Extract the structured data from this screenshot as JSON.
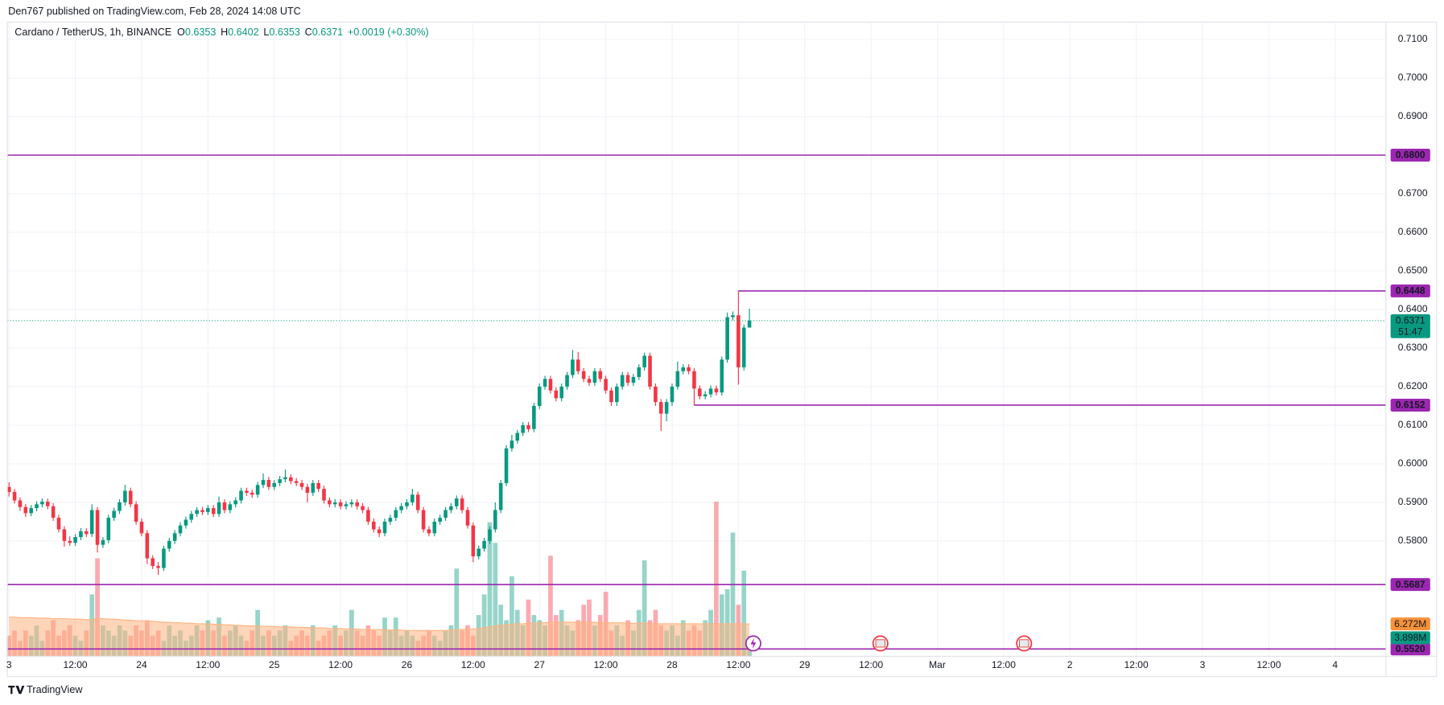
{
  "header": {
    "published": "Den767 published on TradingView.com, Feb 28, 2024 14:08 UTC"
  },
  "footer": {
    "brand": "TradingView"
  },
  "chart_data": {
    "type": "candlestick",
    "legend": {
      "symbol": "Cardano / TetherUS, 1h, BINANCE",
      "fields": [
        {
          "key": "O",
          "value": "0.6353"
        },
        {
          "key": "H",
          "value": "0.6402"
        },
        {
          "key": "L",
          "value": "0.6353"
        },
        {
          "key": "C",
          "value": "0.6371"
        }
      ],
      "change": "+0.0019 (+0.30%)"
    },
    "candles": [
      [
        0.594,
        0.5952,
        0.5915,
        0.5927
      ],
      [
        0.5927,
        0.5935,
        0.5897,
        0.5905
      ],
      [
        0.5905,
        0.5913,
        0.5878,
        0.5888
      ],
      [
        0.5888,
        0.5896,
        0.5862,
        0.5872
      ],
      [
        0.5872,
        0.5893,
        0.5864,
        0.5885
      ],
      [
        0.5885,
        0.5903,
        0.5877,
        0.5895
      ],
      [
        0.5895,
        0.591,
        0.5887,
        0.5902
      ],
      [
        0.5902,
        0.591,
        0.5882,
        0.589
      ],
      [
        0.589,
        0.5898,
        0.5852,
        0.586
      ],
      [
        0.586,
        0.5868,
        0.5822,
        0.583
      ],
      [
        0.583,
        0.5838,
        0.5785,
        0.58
      ],
      [
        0.58,
        0.5812,
        0.5787,
        0.5795
      ],
      [
        0.5795,
        0.5818,
        0.5787,
        0.581
      ],
      [
        0.581,
        0.5833,
        0.5802,
        0.5825
      ],
      [
        0.5825,
        0.5833,
        0.581,
        0.5818
      ],
      [
        0.5818,
        0.5895,
        0.581,
        0.588
      ],
      [
        0.588,
        0.5888,
        0.577,
        0.579
      ],
      [
        0.579,
        0.581,
        0.5782,
        0.5802
      ],
      [
        0.5802,
        0.5868,
        0.5794,
        0.586
      ],
      [
        0.586,
        0.5886,
        0.5852,
        0.5878
      ],
      [
        0.5878,
        0.5908,
        0.587,
        0.59
      ],
      [
        0.59,
        0.5945,
        0.5892,
        0.593
      ],
      [
        0.593,
        0.5938,
        0.5887,
        0.5895
      ],
      [
        0.5895,
        0.5903,
        0.5842,
        0.585
      ],
      [
        0.585,
        0.5858,
        0.5812,
        0.582
      ],
      [
        0.582,
        0.5828,
        0.574,
        0.5755
      ],
      [
        0.5755,
        0.5763,
        0.5727,
        0.5735
      ],
      [
        0.5735,
        0.5745,
        0.5712,
        0.573
      ],
      [
        0.573,
        0.5788,
        0.5722,
        0.578
      ],
      [
        0.578,
        0.5808,
        0.5772,
        0.58
      ],
      [
        0.58,
        0.5828,
        0.5792,
        0.582
      ],
      [
        0.582,
        0.5848,
        0.5812,
        0.584
      ],
      [
        0.584,
        0.5863,
        0.5832,
        0.5855
      ],
      [
        0.5855,
        0.5878,
        0.5847,
        0.587
      ],
      [
        0.587,
        0.5888,
        0.5862,
        0.588
      ],
      [
        0.588,
        0.5888,
        0.5867,
        0.5875
      ],
      [
        0.5875,
        0.5893,
        0.5867,
        0.5885
      ],
      [
        0.5885,
        0.5893,
        0.5862,
        0.587
      ],
      [
        0.587,
        0.5915,
        0.5862,
        0.59
      ],
      [
        0.59,
        0.5908,
        0.5872,
        0.588
      ],
      [
        0.588,
        0.5903,
        0.5872,
        0.5895
      ],
      [
        0.5895,
        0.5913,
        0.5887,
        0.5905
      ],
      [
        0.5905,
        0.5938,
        0.5897,
        0.593
      ],
      [
        0.593,
        0.5938,
        0.5917,
        0.5925
      ],
      [
        0.5925,
        0.5933,
        0.5912,
        0.592
      ],
      [
        0.592,
        0.5953,
        0.5912,
        0.5945
      ],
      [
        0.5945,
        0.5975,
        0.5937,
        0.5958
      ],
      [
        0.5958,
        0.5966,
        0.5932,
        0.594
      ],
      [
        0.594,
        0.5958,
        0.5932,
        0.595
      ],
      [
        0.595,
        0.5968,
        0.5942,
        0.596
      ],
      [
        0.596,
        0.5985,
        0.5952,
        0.5965
      ],
      [
        0.5965,
        0.5973,
        0.5947,
        0.5955
      ],
      [
        0.5955,
        0.5963,
        0.5942,
        0.595
      ],
      [
        0.595,
        0.5958,
        0.5932,
        0.594
      ],
      [
        0.594,
        0.5948,
        0.59,
        0.5925
      ],
      [
        0.5925,
        0.5958,
        0.5917,
        0.595
      ],
      [
        0.595,
        0.5958,
        0.5927,
        0.5935
      ],
      [
        0.5935,
        0.5943,
        0.5897,
        0.5905
      ],
      [
        0.5905,
        0.5913,
        0.5887,
        0.5895
      ],
      [
        0.5895,
        0.5908,
        0.5887,
        0.59
      ],
      [
        0.59,
        0.5908,
        0.5882,
        0.589
      ],
      [
        0.589,
        0.5903,
        0.5882,
        0.5895
      ],
      [
        0.5895,
        0.5908,
        0.5887,
        0.59
      ],
      [
        0.59,
        0.5908,
        0.5882,
        0.589
      ],
      [
        0.589,
        0.5898,
        0.5872,
        0.588
      ],
      [
        0.588,
        0.5888,
        0.5842,
        0.585
      ],
      [
        0.585,
        0.5858,
        0.5822,
        0.583
      ],
      [
        0.583,
        0.5838,
        0.581,
        0.582
      ],
      [
        0.582,
        0.5858,
        0.5812,
        0.585
      ],
      [
        0.585,
        0.5868,
        0.5842,
        0.586
      ],
      [
        0.586,
        0.5888,
        0.5852,
        0.588
      ],
      [
        0.588,
        0.5898,
        0.5872,
        0.589
      ],
      [
        0.589,
        0.5908,
        0.5882,
        0.59
      ],
      [
        0.59,
        0.5935,
        0.5892,
        0.592
      ],
      [
        0.592,
        0.5928,
        0.5872,
        0.588
      ],
      [
        0.588,
        0.5888,
        0.5822,
        0.583
      ],
      [
        0.583,
        0.5838,
        0.5812,
        0.582
      ],
      [
        0.582,
        0.5858,
        0.5812,
        0.585
      ],
      [
        0.585,
        0.5868,
        0.5842,
        0.586
      ],
      [
        0.586,
        0.5888,
        0.5852,
        0.588
      ],
      [
        0.588,
        0.5898,
        0.5872,
        0.589
      ],
      [
        0.589,
        0.5918,
        0.5882,
        0.591
      ],
      [
        0.591,
        0.5918,
        0.5872,
        0.588
      ],
      [
        0.588,
        0.5888,
        0.5832,
        0.584
      ],
      [
        0.584,
        0.5848,
        0.5745,
        0.576
      ],
      [
        0.576,
        0.5788,
        0.5752,
        0.578
      ],
      [
        0.578,
        0.5808,
        0.5772,
        0.58
      ],
      [
        0.58,
        0.5838,
        0.5792,
        0.583
      ],
      [
        0.583,
        0.59,
        0.5822,
        0.588
      ],
      [
        0.588,
        0.5958,
        0.5872,
        0.595
      ],
      [
        0.595,
        0.6048,
        0.5942,
        0.604
      ],
      [
        0.604,
        0.6075,
        0.6032,
        0.606
      ],
      [
        0.606,
        0.6088,
        0.6052,
        0.608
      ],
      [
        0.608,
        0.6108,
        0.6072,
        0.61
      ],
      [
        0.61,
        0.6108,
        0.6082,
        0.609
      ],
      [
        0.609,
        0.6158,
        0.6082,
        0.615
      ],
      [
        0.615,
        0.6208,
        0.6142,
        0.62
      ],
      [
        0.62,
        0.6228,
        0.6192,
        0.622
      ],
      [
        0.622,
        0.6228,
        0.6182,
        0.619
      ],
      [
        0.619,
        0.6198,
        0.6162,
        0.617
      ],
      [
        0.617,
        0.6208,
        0.6162,
        0.62
      ],
      [
        0.62,
        0.6238,
        0.6192,
        0.623
      ],
      [
        0.623,
        0.6295,
        0.6222,
        0.627
      ],
      [
        0.627,
        0.629,
        0.6232,
        0.624
      ],
      [
        0.624,
        0.6248,
        0.6212,
        0.622
      ],
      [
        0.622,
        0.6228,
        0.6202,
        0.621
      ],
      [
        0.621,
        0.6248,
        0.6202,
        0.624
      ],
      [
        0.624,
        0.6248,
        0.6212,
        0.622
      ],
      [
        0.622,
        0.6228,
        0.6182,
        0.619
      ],
      [
        0.619,
        0.6198,
        0.615,
        0.616
      ],
      [
        0.616,
        0.6208,
        0.615,
        0.62
      ],
      [
        0.62,
        0.6238,
        0.6192,
        0.623
      ],
      [
        0.623,
        0.6238,
        0.6202,
        0.621
      ],
      [
        0.621,
        0.6233,
        0.6202,
        0.6225
      ],
      [
        0.6225,
        0.6258,
        0.6217,
        0.625
      ],
      [
        0.625,
        0.6288,
        0.6242,
        0.628
      ],
      [
        0.628,
        0.6288,
        0.6192,
        0.62
      ],
      [
        0.62,
        0.6208,
        0.615,
        0.616
      ],
      [
        0.616,
        0.6168,
        0.6085,
        0.613
      ],
      [
        0.613,
        0.6168,
        0.611,
        0.616
      ],
      [
        0.616,
        0.6208,
        0.615,
        0.62
      ],
      [
        0.62,
        0.6265,
        0.6192,
        0.624
      ],
      [
        0.624,
        0.6258,
        0.6232,
        0.625
      ],
      [
        0.625,
        0.6258,
        0.6232,
        0.624
      ],
      [
        0.624,
        0.6248,
        0.6152,
        0.6195
      ],
      [
        0.6195,
        0.6203,
        0.6167,
        0.6175
      ],
      [
        0.6175,
        0.6188,
        0.6167,
        0.618
      ],
      [
        0.618,
        0.6203,
        0.6172,
        0.6195
      ],
      [
        0.6195,
        0.6203,
        0.6177,
        0.6185
      ],
      [
        0.6185,
        0.6278,
        0.6177,
        0.627
      ],
      [
        0.627,
        0.6392,
        0.6262,
        0.638
      ],
      [
        0.638,
        0.6395,
        0.6372,
        0.6385
      ],
      [
        0.6385,
        0.6448,
        0.6205,
        0.625
      ],
      [
        0.625,
        0.6361,
        0.6242,
        0.6353
      ],
      [
        0.6353,
        0.6402,
        0.6353,
        0.6371
      ]
    ],
    "volume": [
      4,
      5,
      3,
      5,
      4,
      6,
      3,
      5,
      7,
      4,
      5,
      6,
      4,
      3,
      5,
      12,
      19,
      6,
      5,
      4,
      6,
      5,
      4,
      6,
      5,
      7,
      4,
      5,
      3,
      6,
      4,
      5,
      3,
      4,
      6,
      5,
      7,
      5,
      7.5,
      4,
      5,
      6,
      4,
      3,
      5,
      9,
      4,
      5,
      4,
      5,
      6,
      3,
      4,
      5,
      4,
      6,
      3,
      4,
      5,
      6,
      4,
      5,
      9,
      5,
      4,
      6,
      5,
      4,
      7.5,
      5,
      7.5,
      4,
      5,
      4,
      3,
      4,
      5,
      4,
      3,
      5,
      6,
      17,
      5,
      6,
      4,
      8,
      12,
      26,
      22,
      10,
      7,
      15.5,
      9,
      6,
      11,
      8,
      7,
      6,
      19.5,
      8,
      9,
      6,
      5,
      7,
      10,
      11,
      6,
      8,
      12.5,
      5,
      6,
      4,
      7,
      5,
      9,
      18.6,
      7,
      9,
      6,
      5,
      6,
      4,
      7,
      5,
      6,
      5,
      7,
      9,
      30,
      12,
      13,
      24,
      10,
      16.6,
      3.898
    ],
    "volume_ma": [
      7.6,
      7.6,
      7.5,
      7.5,
      7.5,
      7.4,
      7.4,
      7.4,
      7.3,
      7.3,
      7.3,
      7.2,
      7.2,
      7.2,
      7.1,
      7.1,
      7.3,
      7.3,
      7.2,
      7.2,
      7.1,
      7.0,
      7.0,
      6.9,
      6.9,
      6.8,
      6.8,
      6.7,
      6.6,
      6.6,
      6.5,
      6.5,
      6.4,
      6.4,
      6.3,
      6.3,
      6.3,
      6.2,
      6.2,
      6.1,
      6.1,
      6.0,
      6.0,
      5.9,
      5.9,
      5.9,
      5.8,
      5.8,
      5.8,
      5.7,
      5.7,
      5.7,
      5.6,
      5.6,
      5.6,
      5.5,
      5.5,
      5.5,
      5.4,
      5.4,
      5.4,
      5.3,
      5.3,
      5.3,
      5.2,
      5.2,
      5.2,
      5.2,
      5.1,
      5.1,
      5.1,
      5.1,
      5.0,
      5.0,
      5.0,
      5.0,
      5.0,
      5.0,
      5.0,
      5.0,
      5.1,
      5.2,
      5.2,
      5.3,
      5.3,
      5.4,
      5.5,
      5.7,
      5.9,
      6.0,
      6.1,
      6.2,
      6.3,
      6.3,
      6.4,
      6.4,
      6.5,
      6.5,
      6.6,
      6.6,
      6.6,
      6.6,
      6.6,
      6.6,
      6.6,
      6.6,
      6.6,
      6.5,
      6.5,
      6.5,
      6.5,
      6.5,
      6.4,
      6.4,
      6.4,
      6.4,
      6.3,
      6.3,
      6.3,
      6.3,
      6.3,
      6.3,
      6.3,
      6.3,
      6.3,
      6.3,
      6.3,
      6.3,
      6.3,
      6.3,
      6.3,
      6.3,
      6.3,
      6.3,
      6.272
    ],
    "volume_label": "3.898M",
    "volume_ma_label": "6.272M",
    "last_label": "0.6371",
    "countdown": "51:47",
    "levels": [
      {
        "value": 0.68,
        "label": "0.6800"
      },
      {
        "value": 0.6448,
        "label": "0.6448"
      },
      {
        "value": 0.6152,
        "label": "0.6152"
      },
      {
        "value": 0.5687,
        "label": "0.5687"
      },
      {
        "value": 0.552,
        "label": "0.5520"
      }
    ],
    "ylim": [
      0.5501,
      0.7145
    ],
    "volume_ylim": [
      0,
      123
    ],
    "xlim": [
      -0.3,
      249.2
    ],
    "yticks": [
      {
        "value": 0.58,
        "label": "0.5800"
      },
      {
        "value": 0.59,
        "label": "0.5900"
      },
      {
        "value": 0.6,
        "label": "0.6000"
      },
      {
        "value": 0.61,
        "label": "0.6100"
      },
      {
        "value": 0.62,
        "label": "0.6200"
      },
      {
        "value": 0.63,
        "label": "0.6300"
      },
      {
        "value": 0.64,
        "label": "0.6400"
      },
      {
        "value": 0.65,
        "label": "0.6500"
      },
      {
        "value": 0.66,
        "label": "0.6600"
      },
      {
        "value": 0.67,
        "label": "0.6700"
      },
      {
        "value": 0.69,
        "label": "0.6900"
      },
      {
        "value": 0.7,
        "label": "0.7000"
      },
      {
        "value": 0.71,
        "label": "0.7100"
      }
    ],
    "xticks": [
      {
        "value": 0,
        "label": "3"
      },
      {
        "value": 12,
        "label": "12:00"
      },
      {
        "value": 24,
        "label": "24"
      },
      {
        "value": 36,
        "label": "12:00"
      },
      {
        "value": 48,
        "label": "25"
      },
      {
        "value": 60,
        "label": "12:00"
      },
      {
        "value": 72,
        "label": "26"
      },
      {
        "value": 84,
        "label": "12:00"
      },
      {
        "value": 96,
        "label": "27"
      },
      {
        "value": 108,
        "label": "12:00"
      },
      {
        "value": 120,
        "label": "28"
      },
      {
        "value": 132,
        "label": "12:00"
      },
      {
        "value": 144,
        "label": "29"
      },
      {
        "value": 156,
        "label": "12:00"
      },
      {
        "value": 168,
        "label": "Mar"
      },
      {
        "value": 180,
        "label": "12:00"
      },
      {
        "value": 192,
        "label": "2"
      },
      {
        "value": 204,
        "label": "12:00"
      },
      {
        "value": 216,
        "label": "3"
      },
      {
        "value": 228,
        "label": "12:00"
      },
      {
        "value": 240,
        "label": "4"
      }
    ],
    "grid": true,
    "up_color": "#089981",
    "down_color": "#f23645",
    "volume_up_color": "rgba(8,153,129,0.42)",
    "volume_down_color": "rgba(242,54,69,0.42)",
    "volume_ma_color": "#ffb380",
    "level_color": "#9c27b0"
  }
}
